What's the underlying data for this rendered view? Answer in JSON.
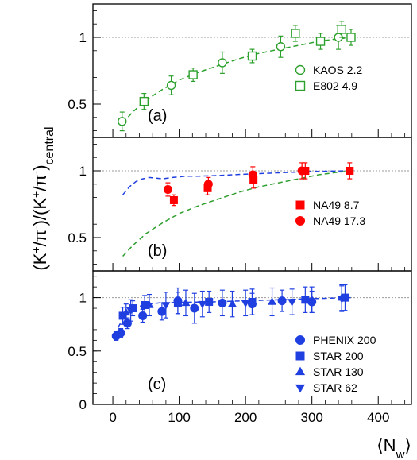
{
  "chart_data": {
    "type": "scatter",
    "ylabel": {
      "main": "(K",
      "sup1": "+",
      "mid1": "/π",
      "sup2": "-",
      "mid2": ")/(K",
      "sup3": "+",
      "mid3": "/π",
      "sup4": "-",
      "close": ")",
      "sub": "central"
    },
    "xlabel": {
      "open": "⟨N",
      "sub": "w",
      "close": "⟩"
    },
    "xlim": [
      -30,
      450
    ],
    "x_ticks": [
      "0",
      "100",
      "200",
      "300",
      "400"
    ],
    "x_tick_values": [
      0,
      100,
      200,
      300,
      400
    ],
    "colors": {
      "green": "#2ca02c",
      "red": "#ff0000",
      "blue": "#1f3fe0",
      "ref_line": "#999999",
      "blue_curve": "#1f3fe0",
      "green_curve": "#2e9e2e"
    },
    "panels": [
      {
        "label": "(a)",
        "ylim": [
          0.25,
          1.25
        ],
        "y_ticks": [
          "0.5",
          "1"
        ],
        "y_tick_values": [
          0.5,
          1.0
        ],
        "reference_line": 1.0,
        "curves": [
          {
            "color": "green",
            "x": [
              15,
              30,
              50,
              75,
              100,
              130,
              160,
              190,
              220,
              250,
              280,
              310,
              340,
              360
            ],
            "y": [
              0.36,
              0.44,
              0.53,
              0.61,
              0.68,
              0.74,
              0.79,
              0.84,
              0.88,
              0.91,
              0.94,
              0.97,
              0.99,
              1.0
            ]
          }
        ],
        "legend": [
          {
            "name": "KAOS 2.2",
            "marker": "circle-open",
            "color": "green"
          },
          {
            "name": "E802 4.9",
            "marker": "square-open",
            "color": "green"
          }
        ],
        "series": [
          {
            "name": "KAOS 2.2",
            "marker": "circle-open",
            "color": "green",
            "x": [
              14,
              88,
              165,
              253,
              340
            ],
            "y": [
              0.37,
              0.64,
              0.81,
              0.93,
              1.0
            ],
            "err": [
              0.07,
              0.07,
              0.08,
              0.08,
              0.09
            ]
          },
          {
            "name": "E802 4.9",
            "marker": "square-open",
            "color": "green",
            "x": [
              47,
              121,
              210,
              275,
              313,
              345,
              359
            ],
            "y": [
              0.52,
              0.72,
              0.86,
              1.03,
              0.97,
              1.06,
              1.0
            ],
            "err": [
              0.06,
              0.05,
              0.05,
              0.06,
              0.06,
              0.06,
              0.06
            ]
          }
        ]
      },
      {
        "label": "(b)",
        "ylim": [
          0.25,
          1.25
        ],
        "y_ticks": [
          "0.5",
          "1"
        ],
        "y_tick_values": [
          0.5,
          1.0
        ],
        "reference_line": 1.0,
        "curves": [
          {
            "color": "blue_curve",
            "x": [
              15,
              25,
              35,
              45,
              55,
              65,
              75,
              90,
              110,
              130,
              160,
              200,
              250,
              300,
              360
            ],
            "y": [
              0.82,
              0.88,
              0.92,
              0.94,
              0.95,
              0.945,
              0.94,
              0.95,
              0.96,
              0.96,
              0.965,
              0.975,
              0.985,
              0.995,
              1.0
            ]
          },
          {
            "color": "green_curve",
            "x": [
              15,
              30,
              50,
              75,
              100,
              130,
              160,
              190,
              220,
              250,
              280,
              310,
              340,
              360
            ],
            "y": [
              0.36,
              0.44,
              0.53,
              0.61,
              0.68,
              0.74,
              0.79,
              0.84,
              0.88,
              0.91,
              0.94,
              0.97,
              0.99,
              1.0
            ]
          }
        ],
        "legend": [
          {
            "name": "NA49 8.7",
            "marker": "square-filled",
            "color": "red"
          },
          {
            "name": "NA49 17.3",
            "marker": "circle-filled",
            "color": "red"
          }
        ],
        "series": [
          {
            "name": "NA49 8.7",
            "marker": "square-filled",
            "color": "red",
            "x": [
              92,
              143,
              212,
              290,
              357
            ],
            "y": [
              0.78,
              0.87,
              0.93,
              1.0,
              1.0
            ],
            "err": [
              0.04,
              0.05,
              0.06,
              0.06,
              0.06
            ]
          },
          {
            "name": "NA49 17.3",
            "marker": "circle-filled",
            "color": "red",
            "x": [
              83,
              144,
              211,
              285
            ],
            "y": [
              0.86,
              0.9,
              0.97,
              1.0
            ],
            "err": [
              0.05,
              0.05,
              0.06,
              0.06
            ]
          }
        ]
      },
      {
        "label": "(c)",
        "ylim": [
          0,
          1.25
        ],
        "y_ticks": [
          "0",
          "0.5",
          "1"
        ],
        "y_tick_values": [
          0,
          0.5,
          1.0
        ],
        "reference_line": 1.0,
        "curves": [
          {
            "color": "blue_curve",
            "x": [
              3,
              8,
              15,
              25,
              35,
              50,
              70,
              100,
              150,
              200,
              250,
              300,
              360
            ],
            "y": [
              0.65,
              0.72,
              0.8,
              0.87,
              0.91,
              0.935,
              0.95,
              0.955,
              0.96,
              0.97,
              0.98,
              0.99,
              1.0
            ]
          }
        ],
        "legend": [
          {
            "name": "PHENIX 200",
            "marker": "circle-filled",
            "color": "blue"
          },
          {
            "name": "STAR 200",
            "marker": "square-filled",
            "color": "blue"
          },
          {
            "name": "STAR 130",
            "marker": "triangle-up",
            "color": "blue"
          },
          {
            "name": "STAR 62",
            "marker": "triangle-down",
            "color": "blue"
          }
        ],
        "series": [
          {
            "name": "PHENIX 200",
            "marker": "circle-filled",
            "color": "blue",
            "x": [
              5,
              12,
              22,
              45,
              74,
              98,
              123,
              165,
              210,
              255,
              300
            ],
            "y": [
              0.64,
              0.67,
              0.76,
              0.83,
              0.87,
              0.97,
              0.9,
              0.95,
              0.94,
              0.97,
              0.96
            ],
            "err": [
              0.04,
              0.04,
              0.05,
              0.06,
              0.08,
              0.12,
              0.14,
              0.12,
              0.1,
              0.1,
              0.1
            ]
          },
          {
            "name": "STAR 200",
            "marker": "square-filled",
            "color": "blue",
            "x": [
              15,
              30,
              48,
              98,
              145,
              210,
              290,
              350
            ],
            "y": [
              0.83,
              0.9,
              0.93,
              0.95,
              0.96,
              0.96,
              0.98,
              1.0
            ],
            "err": [
              0.08,
              0.07,
              0.09,
              0.1,
              0.1,
              0.12,
              0.12,
              0.12
            ]
          },
          {
            "name": "STAR 130",
            "marker": "triangle-up",
            "color": "blue",
            "x": [
              20,
              55,
              110,
              180,
              240,
              300,
              345
            ],
            "y": [
              0.86,
              0.93,
              0.95,
              0.94,
              0.96,
              0.98,
              1.0
            ],
            "err": [
              0.08,
              0.1,
              0.12,
              0.12,
              0.13,
              0.12,
              0.12
            ]
          },
          {
            "name": "STAR 62",
            "marker": "triangle-down",
            "color": "blue",
            "x": [
              27,
              80,
              135,
              200,
              270,
              345
            ],
            "y": [
              0.88,
              0.93,
              0.94,
              0.95,
              0.96,
              0.99
            ],
            "err": [
              0.1,
              0.12,
              0.12,
              0.12,
              0.12,
              0.12
            ]
          }
        ]
      }
    ]
  }
}
